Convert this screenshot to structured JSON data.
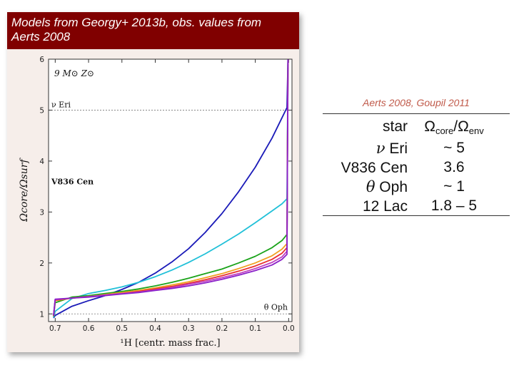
{
  "banner": {
    "line1": "Models from Georgy+ 2013b, obs. values from",
    "line2": "Aerts 2008"
  },
  "chart_data": {
    "type": "line",
    "title": "",
    "model_label": "9 M⊙  Z⊙",
    "xlabel": "¹H [centr. mass frac.]",
    "ylabel": "Ωcore/Ωsurf",
    "xlim": [
      0.72,
      -0.01
    ],
    "ylim": [
      0.85,
      6.0
    ],
    "x_ticks": [
      "0.7",
      "0.6",
      "0.5",
      "0.4",
      "0.3",
      "0.2",
      "0.1",
      "0.0"
    ],
    "y_ticks": [
      "1",
      "2",
      "3",
      "4",
      "5",
      "6"
    ],
    "reference_lines": [
      {
        "label": "ν Eri",
        "y": 5.0
      },
      {
        "label": "V836 Cen",
        "y": 3.6
      },
      {
        "label": "θ Oph",
        "y": 1.0
      }
    ],
    "series": [
      {
        "color": "#1a1ab8",
        "x": [
          0.705,
          0.7,
          0.65,
          0.6,
          0.55,
          0.5,
          0.45,
          0.4,
          0.35,
          0.3,
          0.25,
          0.2,
          0.15,
          0.1,
          0.05,
          0.02,
          0.005,
          0.002
        ],
        "y": [
          0.92,
          0.97,
          1.15,
          1.26,
          1.36,
          1.48,
          1.62,
          1.8,
          2.02,
          2.28,
          2.6,
          2.97,
          3.4,
          3.88,
          4.45,
          4.85,
          5.05,
          6.0
        ]
      },
      {
        "color": "#20c0d8",
        "x": [
          0.705,
          0.7,
          0.65,
          0.6,
          0.55,
          0.5,
          0.45,
          0.4,
          0.35,
          0.3,
          0.25,
          0.2,
          0.15,
          0.1,
          0.05,
          0.02,
          0.005,
          0.002
        ],
        "y": [
          0.93,
          1.05,
          1.3,
          1.4,
          1.46,
          1.53,
          1.62,
          1.73,
          1.86,
          2.01,
          2.18,
          2.37,
          2.57,
          2.79,
          3.02,
          3.16,
          3.26,
          6.0
        ]
      },
      {
        "color": "#1aa31a",
        "x": [
          0.705,
          0.7,
          0.65,
          0.6,
          0.55,
          0.5,
          0.45,
          0.4,
          0.35,
          0.3,
          0.25,
          0.2,
          0.15,
          0.1,
          0.05,
          0.02,
          0.005,
          0.002
        ],
        "y": [
          0.95,
          1.22,
          1.33,
          1.36,
          1.4,
          1.44,
          1.49,
          1.55,
          1.62,
          1.7,
          1.79,
          1.88,
          2.0,
          2.13,
          2.3,
          2.44,
          2.56,
          6.0
        ]
      },
      {
        "color": "#f0a020",
        "x": [
          0.705,
          0.7,
          0.65,
          0.6,
          0.55,
          0.5,
          0.45,
          0.4,
          0.35,
          0.3,
          0.25,
          0.2,
          0.15,
          0.1,
          0.05,
          0.02,
          0.005,
          0.002
        ],
        "y": [
          0.96,
          1.26,
          1.31,
          1.34,
          1.38,
          1.42,
          1.46,
          1.51,
          1.57,
          1.63,
          1.71,
          1.79,
          1.89,
          2.0,
          2.14,
          2.27,
          2.38,
          6.0
        ]
      },
      {
        "color": "#e83030",
        "x": [
          0.705,
          0.7,
          0.65,
          0.6,
          0.55,
          0.5,
          0.45,
          0.4,
          0.35,
          0.3,
          0.25,
          0.2,
          0.15,
          0.1,
          0.05,
          0.02,
          0.005,
          0.002
        ],
        "y": [
          0.96,
          1.27,
          1.31,
          1.34,
          1.37,
          1.4,
          1.44,
          1.49,
          1.54,
          1.6,
          1.67,
          1.75,
          1.84,
          1.94,
          2.07,
          2.19,
          2.3,
          6.0
        ]
      },
      {
        "color": "#c040c0",
        "x": [
          0.705,
          0.7,
          0.65,
          0.6,
          0.55,
          0.5,
          0.45,
          0.4,
          0.35,
          0.3,
          0.25,
          0.2,
          0.15,
          0.1,
          0.05,
          0.02,
          0.005,
          0.002
        ],
        "y": [
          0.97,
          1.28,
          1.31,
          1.34,
          1.37,
          1.4,
          1.43,
          1.47,
          1.52,
          1.58,
          1.64,
          1.71,
          1.79,
          1.89,
          2.01,
          2.12,
          2.23,
          6.0
        ]
      },
      {
        "color": "#8a20c8",
        "x": [
          0.705,
          0.7,
          0.65,
          0.6,
          0.55,
          0.5,
          0.45,
          0.4,
          0.35,
          0.3,
          0.25,
          0.2,
          0.15,
          0.1,
          0.05,
          0.02,
          0.005,
          0.002
        ],
        "y": [
          0.97,
          1.29,
          1.31,
          1.33,
          1.36,
          1.39,
          1.42,
          1.46,
          1.5,
          1.55,
          1.61,
          1.68,
          1.76,
          1.85,
          1.96,
          2.07,
          2.17,
          6.0
        ]
      }
    ]
  },
  "table": {
    "caption": "Aerts 2008, Goupil 2011",
    "header": {
      "star": "star",
      "ratio_base": "Ω",
      "ratio_sub1": "core",
      "ratio_mid": "/Ω",
      "ratio_sub2": "env"
    },
    "rows": [
      {
        "star_sym": "ν",
        "star_name": " Eri",
        "value": "~ 5"
      },
      {
        "star_sym": "",
        "star_name": "V836 Cen",
        "value": "3.6"
      },
      {
        "star_sym": "θ",
        "star_name": " Oph",
        "value": "~ 1"
      },
      {
        "star_sym": "",
        "star_name": "12 Lac",
        "value": "1.8 – 5"
      }
    ]
  }
}
